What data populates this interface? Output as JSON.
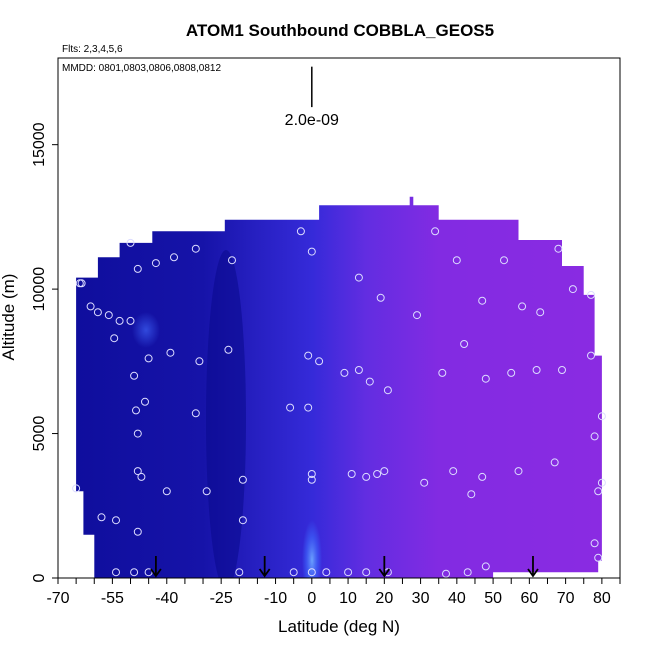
{
  "chart_data": {
    "type": "heatmap",
    "title": "ATOM1 Southbound COBBLA_GEOS5",
    "flights_note": "Flts: 2,3,4,5,6",
    "dates_note": "MMDD: 0801,0803,0806,0808,0812",
    "xlabel": "Latitude (deg N)",
    "ylabel": "Altitude (m)",
    "xlim": [
      -70,
      85
    ],
    "ylim": [
      0,
      18000
    ],
    "x_tick_labels": [
      -70,
      -55,
      -40,
      -25,
      -10,
      0,
      10,
      20,
      30,
      40,
      50,
      60,
      70,
      80
    ],
    "x_minor_ticks": [
      -70,
      -65,
      -60,
      -55,
      -50,
      -45,
      -40,
      -35,
      -30,
      -25,
      -20,
      -15,
      -10,
      -5,
      0,
      5,
      10,
      15,
      20,
      25,
      30,
      35,
      40,
      45,
      50,
      55,
      60,
      65,
      70,
      75,
      80,
      85
    ],
    "y_tick_labels": [
      0,
      5000,
      10000,
      15000
    ],
    "scale_bar_label": "2.0e-09",
    "scale_bar": {
      "x": 0,
      "y_low": 16300,
      "y_high": 17700
    },
    "colors": {
      "low": "#0a0a96",
      "mid": "#3a2ee0",
      "high": "#8a2be2",
      "blob": "#4d85ff",
      "marker": "#dcdcff",
      "arrow": "#000000"
    },
    "curtain_outline": [
      [
        -65,
        3000
      ],
      [
        -65,
        10400
      ],
      [
        -59,
        10400
      ],
      [
        -59,
        11100
      ],
      [
        -53,
        11100
      ],
      [
        -53,
        11600
      ],
      [
        -44,
        11600
      ],
      [
        -44,
        12000
      ],
      [
        -24,
        12000
      ],
      [
        -24,
        12400
      ],
      [
        -5,
        12400
      ],
      [
        2,
        12400
      ],
      [
        2,
        12900
      ],
      [
        27,
        12900
      ],
      [
        27,
        13200
      ],
      [
        28,
        13200
      ],
      [
        28,
        12900
      ],
      [
        35,
        12900
      ],
      [
        35,
        12400
      ],
      [
        57,
        12400
      ],
      [
        57,
        11700
      ],
      [
        69,
        11700
      ],
      [
        69,
        10800
      ],
      [
        75,
        10800
      ],
      [
        75,
        9800
      ],
      [
        78,
        9800
      ],
      [
        78,
        7700
      ],
      [
        80,
        7700
      ],
      [
        80,
        600
      ],
      [
        79,
        600
      ],
      [
        79,
        200
      ],
      [
        50,
        200
      ],
      [
        50,
        0
      ],
      [
        -60,
        0
      ],
      [
        -60,
        1500
      ],
      [
        -63,
        1500
      ],
      [
        -63,
        3000
      ]
    ],
    "gradient_stops": [
      {
        "lat": -65,
        "value": 0.05
      },
      {
        "lat": -30,
        "value": 0.12
      },
      {
        "lat": -15,
        "value": 0.3
      },
      {
        "lat": 0,
        "value": 0.45
      },
      {
        "lat": 15,
        "value": 0.75
      },
      {
        "lat": 35,
        "value": 0.95
      },
      {
        "lat": 80,
        "value": 1.0
      }
    ],
    "sample_points": [
      [
        -64,
        10200
      ],
      [
        -63.5,
        10200
      ],
      [
        -61,
        9400
      ],
      [
        -59,
        9200
      ],
      [
        -56,
        9100
      ],
      [
        -53,
        8900
      ],
      [
        -50,
        8900
      ],
      [
        -54.5,
        8300
      ],
      [
        -50,
        11600
      ],
      [
        -48,
        10700
      ],
      [
        -43,
        10900
      ],
      [
        -38,
        11100
      ],
      [
        -32,
        11400
      ],
      [
        -22,
        11000
      ],
      [
        -3,
        12000
      ],
      [
        0,
        11300
      ],
      [
        -45,
        7600
      ],
      [
        -39,
        7800
      ],
      [
        -31,
        7500
      ],
      [
        -23,
        7900
      ],
      [
        -49,
        7000
      ],
      [
        -46,
        6100
      ],
      [
        -32,
        5700
      ],
      [
        -48.5,
        5800
      ],
      [
        -48,
        5000
      ],
      [
        -1,
        7700
      ],
      [
        2,
        7500
      ],
      [
        9,
        7100
      ],
      [
        13,
        7200
      ],
      [
        16,
        6800
      ],
      [
        21,
        6500
      ],
      [
        -6,
        5900
      ],
      [
        -1,
        5900
      ],
      [
        13,
        10400
      ],
      [
        19,
        9700
      ],
      [
        29,
        9100
      ],
      [
        34,
        12000
      ],
      [
        40,
        11000
      ],
      [
        53,
        11000
      ],
      [
        68,
        11400
      ],
      [
        47,
        9600
      ],
      [
        58,
        9400
      ],
      [
        63,
        9200
      ],
      [
        72,
        10000
      ],
      [
        77,
        9800
      ],
      [
        42,
        8100
      ],
      [
        36,
        7100
      ],
      [
        48,
        6900
      ],
      [
        55,
        7100
      ],
      [
        62,
        7200
      ],
      [
        69,
        7200
      ],
      [
        77,
        7700
      ],
      [
        80,
        5600
      ],
      [
        78,
        4900
      ],
      [
        -48,
        3700
      ],
      [
        -47,
        3500
      ],
      [
        -19,
        3400
      ],
      [
        0,
        3600
      ],
      [
        0,
        3400
      ],
      [
        11,
        3600
      ],
      [
        15,
        3500
      ],
      [
        18,
        3600
      ],
      [
        20,
        3700
      ],
      [
        31,
        3300
      ],
      [
        39,
        3700
      ],
      [
        47,
        3500
      ],
      [
        57,
        3700
      ],
      [
        67,
        4000
      ],
      [
        80,
        3300
      ],
      [
        79,
        3000
      ],
      [
        -65,
        3100
      ],
      [
        -40,
        3000
      ],
      [
        -29,
        3000
      ],
      [
        -19,
        2000
      ],
      [
        -58,
        2100
      ],
      [
        -54,
        2000
      ],
      [
        -48,
        1600
      ],
      [
        44,
        2900
      ],
      [
        78,
        1200
      ],
      [
        79,
        700
      ],
      [
        -54,
        200
      ],
      [
        -49,
        200
      ],
      [
        -45,
        200
      ],
      [
        -20,
        200
      ],
      [
        -5,
        200
      ],
      [
        0,
        200
      ],
      [
        4,
        200
      ],
      [
        10,
        200
      ],
      [
        15,
        200
      ],
      [
        21,
        200
      ],
      [
        37,
        150
      ],
      [
        43,
        200
      ],
      [
        48,
        400
      ]
    ],
    "flight_arrows": [
      -43,
      -13,
      20,
      61
    ]
  }
}
